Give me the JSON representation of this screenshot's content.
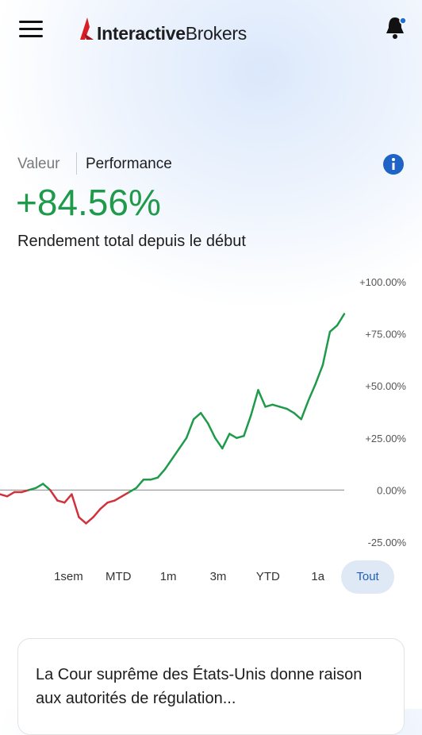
{
  "header": {
    "logo_bold": "Interactive",
    "logo_light": "Brokers"
  },
  "tabs": [
    "Valeur",
    "Performance"
  ],
  "summary": {
    "value": "+84.56%",
    "caption": "Rendement total depuis le début"
  },
  "chart_data": {
    "type": "line",
    "values": [
      -2,
      -3,
      -1,
      -1,
      0,
      1,
      3,
      0,
      -5,
      -6,
      -2,
      -13,
      -16,
      -13,
      -9,
      -6,
      -5,
      -3,
      -1,
      1,
      5,
      5,
      6,
      10,
      15,
      20,
      25,
      34,
      37,
      32,
      25,
      20,
      27,
      25,
      26,
      36,
      48,
      40,
      41,
      40,
      39,
      37,
      34,
      43,
      51,
      60,
      76,
      79,
      84.56
    ],
    "positive_color": "#1f9a4a",
    "negative_color": "#d0323d",
    "ylim": [
      -25,
      100
    ],
    "yticks": [
      {
        "value": 100,
        "label": "+100.00%"
      },
      {
        "value": 75,
        "label": "+75.00%"
      },
      {
        "value": 50,
        "label": "+50.00%"
      },
      {
        "value": 25,
        "label": "+25.00%"
      },
      {
        "value": 0,
        "label": "0.00%"
      },
      {
        "value": -25,
        "label": "-25.00%"
      }
    ],
    "baseline": 0
  },
  "ranges": {
    "options": [
      "1sem",
      "MTD",
      "1m",
      "3m",
      "YTD",
      "1a",
      "Tout"
    ],
    "selected": 6
  },
  "news": {
    "headline": "La Cour suprême des États-Unis donne raison aux autorités de régulation..."
  }
}
